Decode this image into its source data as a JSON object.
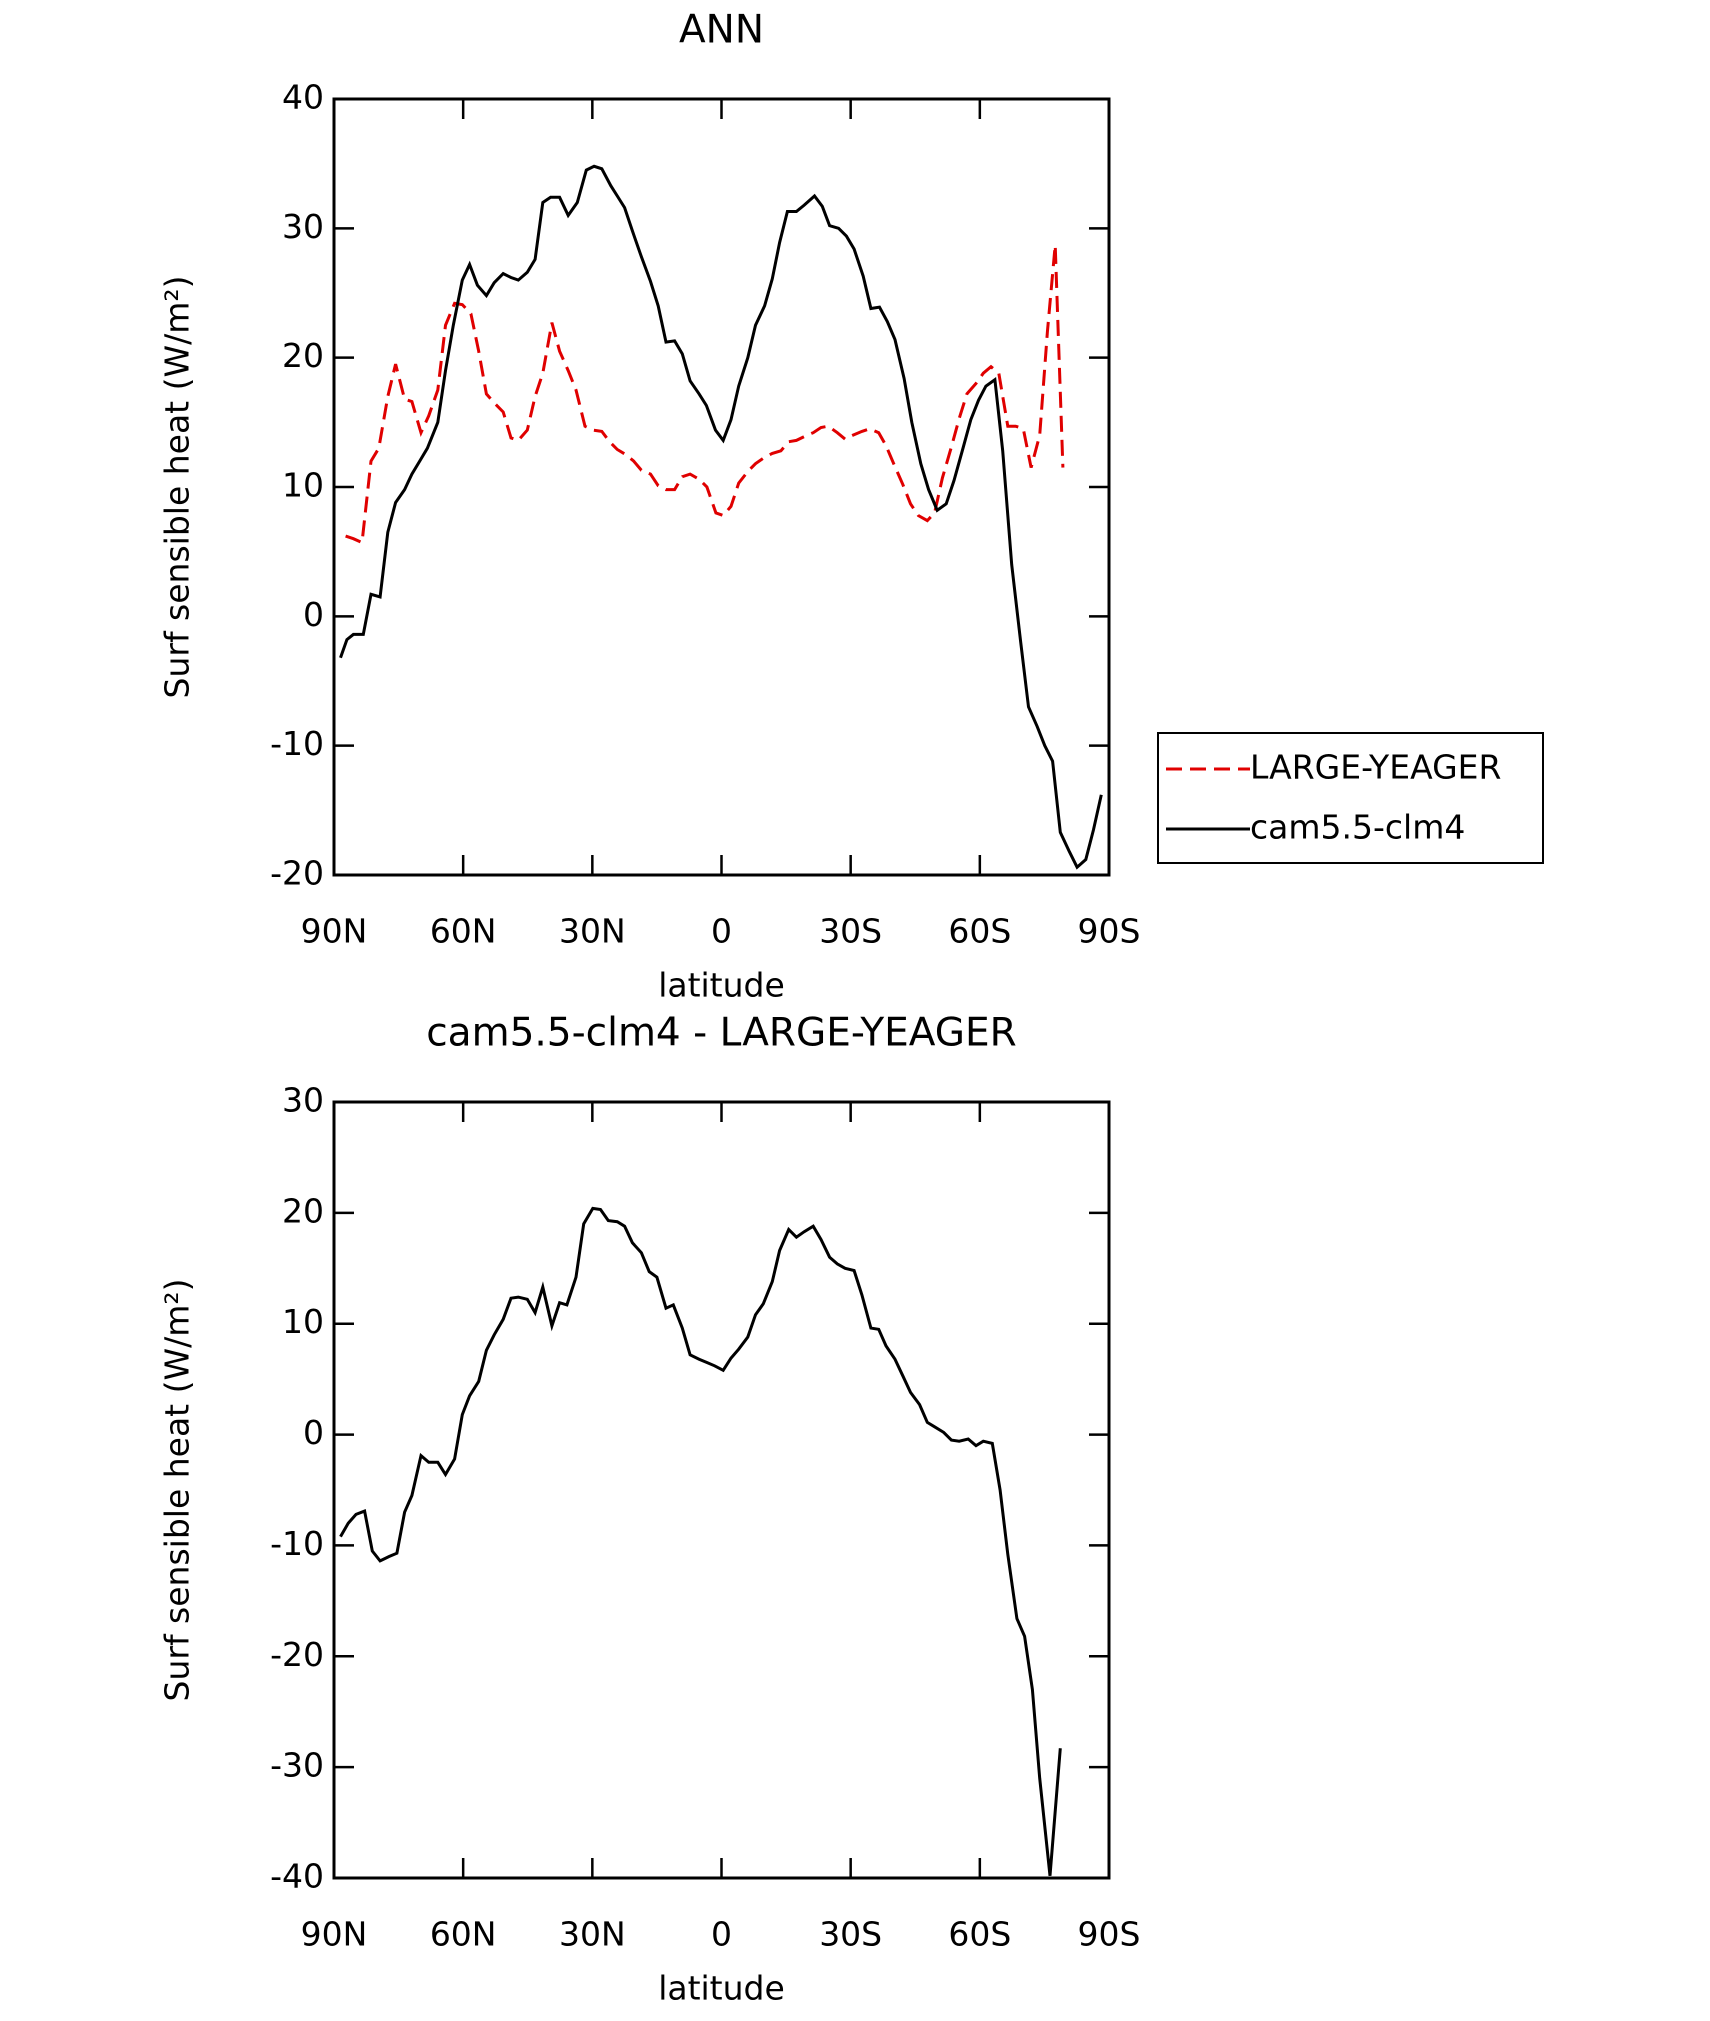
{
  "chart_data": [
    {
      "type": "line",
      "title": "ANN",
      "xlabel": "latitude",
      "ylabel": "Surf sensible heat (W/m²)",
      "xlim": [
        90,
        -90
      ],
      "xticks": [
        {
          "value": 90,
          "label": "90N"
        },
        {
          "value": 60,
          "label": "60N"
        },
        {
          "value": 30,
          "label": "30N"
        },
        0,
        {
          "value": -30,
          "label": "30S"
        },
        {
          "value": -60,
          "label": "60S"
        },
        {
          "value": -90,
          "label": "90S"
        }
      ],
      "ylim": [
        -20,
        40
      ],
      "yticks": [
        -20,
        -10,
        0,
        10,
        20,
        30,
        40
      ],
      "legend": "right",
      "series": [
        {
          "name": "LARGE-YEAGER",
          "color": "#e00000",
          "style": "dashed",
          "x": [
            87.3,
            85.5,
            83.5,
            81.4,
            79.6,
            77.5,
            75.7,
            73.6,
            71.9,
            69.8,
            68,
            65.9,
            64.1,
            62,
            60.2,
            58.2,
            56.4,
            54.6,
            52.8,
            50.7,
            48.9,
            47.2,
            45.1,
            43.3,
            41.5,
            39.4,
            37.6,
            35.6,
            33.8,
            31.7,
            29.9,
            27.8,
            26,
            24.2,
            22.2,
            20.4,
            18.6,
            16.5,
            14.7,
            12.9,
            10.9,
            9.1,
            7.3,
            5.2,
            3.4,
            1.3,
            -0.4,
            -2.2,
            -4,
            -6.1,
            -7.9,
            -10,
            -11.8,
            -13.8,
            -15.6,
            -17.4,
            -19.2,
            -21.3,
            -23.1,
            -24.8,
            -26.9,
            -28.7,
            -30.5,
            -32.6,
            -34.4,
            -36.5,
            -38.2,
            -40,
            -42.1,
            -43.9,
            -45.7,
            -47.8,
            -49.5,
            -51.3,
            -53.4,
            -55.2,
            -57,
            -59.1,
            -60.8,
            -62.6,
            -64.4,
            -66.5,
            -68.3,
            -70.1,
            -71.9,
            -73.9,
            -75.7,
            -77.5,
            -79.3
          ],
          "values": [
            6.2,
            6,
            5.7,
            12,
            13,
            17,
            19.5,
            16.8,
            16.6,
            14.2,
            15.5,
            17.5,
            22.5,
            24.2,
            24.1,
            23.4,
            20.5,
            17.2,
            16.5,
            15.8,
            13.8,
            13.6,
            14.4,
            17,
            18.8,
            22.7,
            20.5,
            19,
            17.5,
            14.7,
            14.4,
            14.3,
            13.5,
            12.9,
            12.5,
            12,
            11.3,
            11,
            10.1,
            9.8,
            9.8,
            10.8,
            11,
            10.6,
            10,
            8,
            7.8,
            8.5,
            10.3,
            11.2,
            11.8,
            12.3,
            12.6,
            12.8,
            13.5,
            13.6,
            13.9,
            14.2,
            14.6,
            14.7,
            14.2,
            13.7,
            14,
            14.3,
            14.5,
            14.2,
            13.2,
            11.8,
            10.2,
            8.7,
            7.8,
            7.4,
            8,
            10.7,
            13.1,
            15.3,
            17.2,
            18,
            18.8,
            19.3,
            18.8,
            14.7,
            14.7,
            14.5,
            11.5,
            14,
            22,
            28.7,
            11.5
          ]
        },
        {
          "name": "cam5.5-clm4",
          "color": "#000000",
          "style": "solid",
          "x": [
            88.5,
            87,
            85.5,
            83.2,
            81.4,
            79.3,
            77.5,
            75.7,
            73.6,
            71.9,
            70.1,
            68.3,
            65.9,
            64.1,
            62.3,
            60.2,
            58.5,
            56.7,
            54.6,
            52.8,
            50.7,
            48.9,
            47.2,
            45.1,
            43.3,
            41.5,
            39.7,
            37.6,
            35.6,
            33.5,
            31.4,
            29.6,
            27.8,
            25.7,
            24.2,
            22.5,
            20.7,
            18.6,
            16.5,
            14.7,
            12.9,
            10.9,
            9.1,
            7.3,
            5.2,
            3.5,
            1.4,
            -0.4,
            -2.2,
            -4,
            -6.1,
            -7.9,
            -10,
            -11.8,
            -13.5,
            -15.3,
            -17.4,
            -19.2,
            -21.6,
            -23.4,
            -25.1,
            -27.2,
            -29,
            -30.8,
            -32.9,
            -34.7,
            -36.7,
            -38.5,
            -40.3,
            -42.4,
            -44.2,
            -46.3,
            -48.1,
            -50.1,
            -52.2,
            -54,
            -56.1,
            -57.9,
            -59.7,
            -61.4,
            -63.5,
            -65.3,
            -67.4,
            -69.5,
            -71.3,
            -73.3,
            -75.1,
            -76.9,
            -78.7,
            -80.8,
            -82.6,
            -84.6,
            -86.4,
            -88.2
          ],
          "values": [
            -3.2,
            -1.8,
            -1.4,
            -1.4,
            1.7,
            1.5,
            6.5,
            8.8,
            9.8,
            11,
            12,
            13,
            15,
            19,
            22.5,
            26,
            27.2,
            25.6,
            24.8,
            25.8,
            26.5,
            26.2,
            26,
            26.6,
            27.6,
            32,
            32.4,
            32.4,
            31,
            32,
            34.5,
            34.8,
            34.6,
            33.3,
            32.5,
            31.6,
            29.8,
            27.8,
            25.9,
            24,
            21.2,
            21.3,
            20.3,
            18.2,
            17.2,
            16.3,
            14.4,
            13.6,
            15.2,
            17.8,
            20,
            22.5,
            24,
            26.1,
            28.9,
            31.3,
            31.3,
            31.8,
            32.5,
            31.7,
            30.2,
            30,
            29.4,
            28.4,
            26.3,
            23.8,
            23.9,
            22.8,
            21.4,
            18.4,
            15,
            11.8,
            9.8,
            8.2,
            8.7,
            10.5,
            13,
            15.2,
            16.7,
            17.8,
            18.3,
            12.8,
            4,
            -2,
            -7,
            -8.5,
            -10,
            -11.2,
            -16.7,
            -18.2,
            -19.4,
            -18.8,
            -16.5,
            -13.8
          ]
        }
      ]
    },
    {
      "type": "line",
      "title": "cam5.5-clm4 - LARGE-YEAGER",
      "xlabel": "latitude",
      "ylabel": "Surf sensible heat (W/m²)",
      "xlim": [
        90,
        -90
      ],
      "xticks": [
        {
          "value": 90,
          "label": "90N"
        },
        {
          "value": 60,
          "label": "60N"
        },
        {
          "value": 30,
          "label": "30N"
        },
        0,
        {
          "value": -30,
          "label": "30S"
        },
        {
          "value": -60,
          "label": "60S"
        },
        {
          "value": -90,
          "label": "90S"
        }
      ],
      "ylim": [
        -40,
        30
      ],
      "yticks": [
        -40,
        -30,
        -20,
        -10,
        0,
        10,
        20,
        30
      ],
      "series": [
        {
          "color": "#000000",
          "style": "solid",
          "x": [
            88.5,
            86.7,
            84.9,
            82.9,
            81.1,
            79.3,
            77.2,
            75.4,
            73.6,
            71.9,
            69.8,
            68,
            65.9,
            64.1,
            62,
            60.2,
            58.5,
            56.4,
            54.6,
            52.8,
            50.7,
            48.9,
            47.2,
            45.1,
            43.3,
            41.5,
            39.4,
            37.6,
            35.9,
            33.8,
            32,
            29.9,
            28.1,
            26.3,
            24.2,
            22.5,
            20.7,
            18.6,
            16.8,
            15,
            12.9,
            11.2,
            9.1,
            7.3,
            5.2,
            3.4,
            1.6,
            -0.4,
            -2.2,
            -4,
            -6.1,
            -7.9,
            -9.7,
            -11.8,
            -13.5,
            -15.6,
            -17.4,
            -19.2,
            -21.3,
            -23.1,
            -25.1,
            -26.9,
            -28.7,
            -30.8,
            -32.6,
            -34.7,
            -36.5,
            -38.2,
            -40.3,
            -42.1,
            -43.9,
            -46,
            -47.8,
            -49.5,
            -51.6,
            -53.4,
            -55.2,
            -57.3,
            -59.1,
            -60.8,
            -62.9,
            -64.7,
            -66.5,
            -68.6,
            -70.4,
            -72.2,
            -73.9,
            -76.3,
            -78.7
          ],
          "values": [
            -9.2,
            -8,
            -7.2,
            -6.9,
            -10.5,
            -11.4,
            -11,
            -10.7,
            -7,
            -5.5,
            -1.9,
            -2.5,
            -2.5,
            -3.6,
            -2.2,
            1.8,
            3.5,
            4.8,
            7.6,
            9,
            10.4,
            12.3,
            12.4,
            12.2,
            11,
            13.3,
            9.8,
            11.9,
            11.7,
            14.2,
            19,
            20.4,
            20.3,
            19.3,
            19.2,
            18.8,
            17.3,
            16.4,
            14.7,
            14.2,
            11.4,
            11.7,
            9.6,
            7.2,
            6.8,
            6.5,
            6.2,
            5.8,
            6.9,
            7.7,
            8.8,
            10.8,
            11.8,
            13.8,
            16.6,
            18.5,
            17.8,
            18.3,
            18.8,
            17.6,
            16,
            15.4,
            15,
            14.8,
            12.6,
            9.6,
            9.5,
            8,
            6.8,
            5.3,
            3.8,
            2.7,
            1.1,
            0.7,
            0.2,
            -0.5,
            -0.6,
            -0.4,
            -1,
            -0.6,
            -0.8,
            -5,
            -10.8,
            -16.6,
            -18.2,
            -23,
            -31,
            -39.8,
            -28.3
          ]
        }
      ]
    }
  ]
}
